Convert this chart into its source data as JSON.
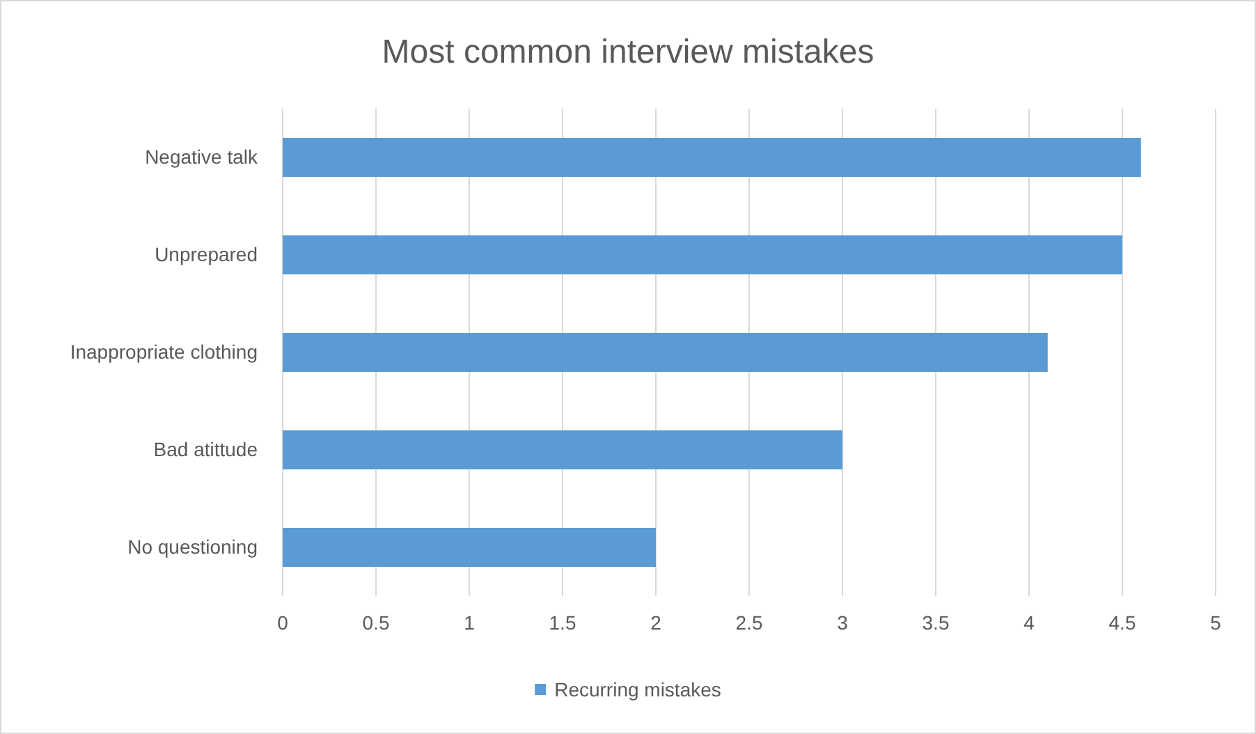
{
  "chart_data": {
    "type": "bar",
    "orientation": "horizontal",
    "title": "Most common interview mistakes",
    "categories": [
      "Negative talk",
      "Unprepared",
      "Inappropriate clothing",
      "Bad atittude",
      "No questioning"
    ],
    "series": [
      {
        "name": "Recurring mistakes",
        "color": "#5b9bd5",
        "values": [
          4.6,
          4.5,
          4.1,
          3,
          2
        ]
      }
    ],
    "xlim": [
      0,
      5
    ],
    "xticks": [
      0,
      0.5,
      1,
      1.5,
      2,
      2.5,
      3,
      3.5,
      4,
      4.5,
      5
    ],
    "grid": "x",
    "legend": "bottom"
  }
}
